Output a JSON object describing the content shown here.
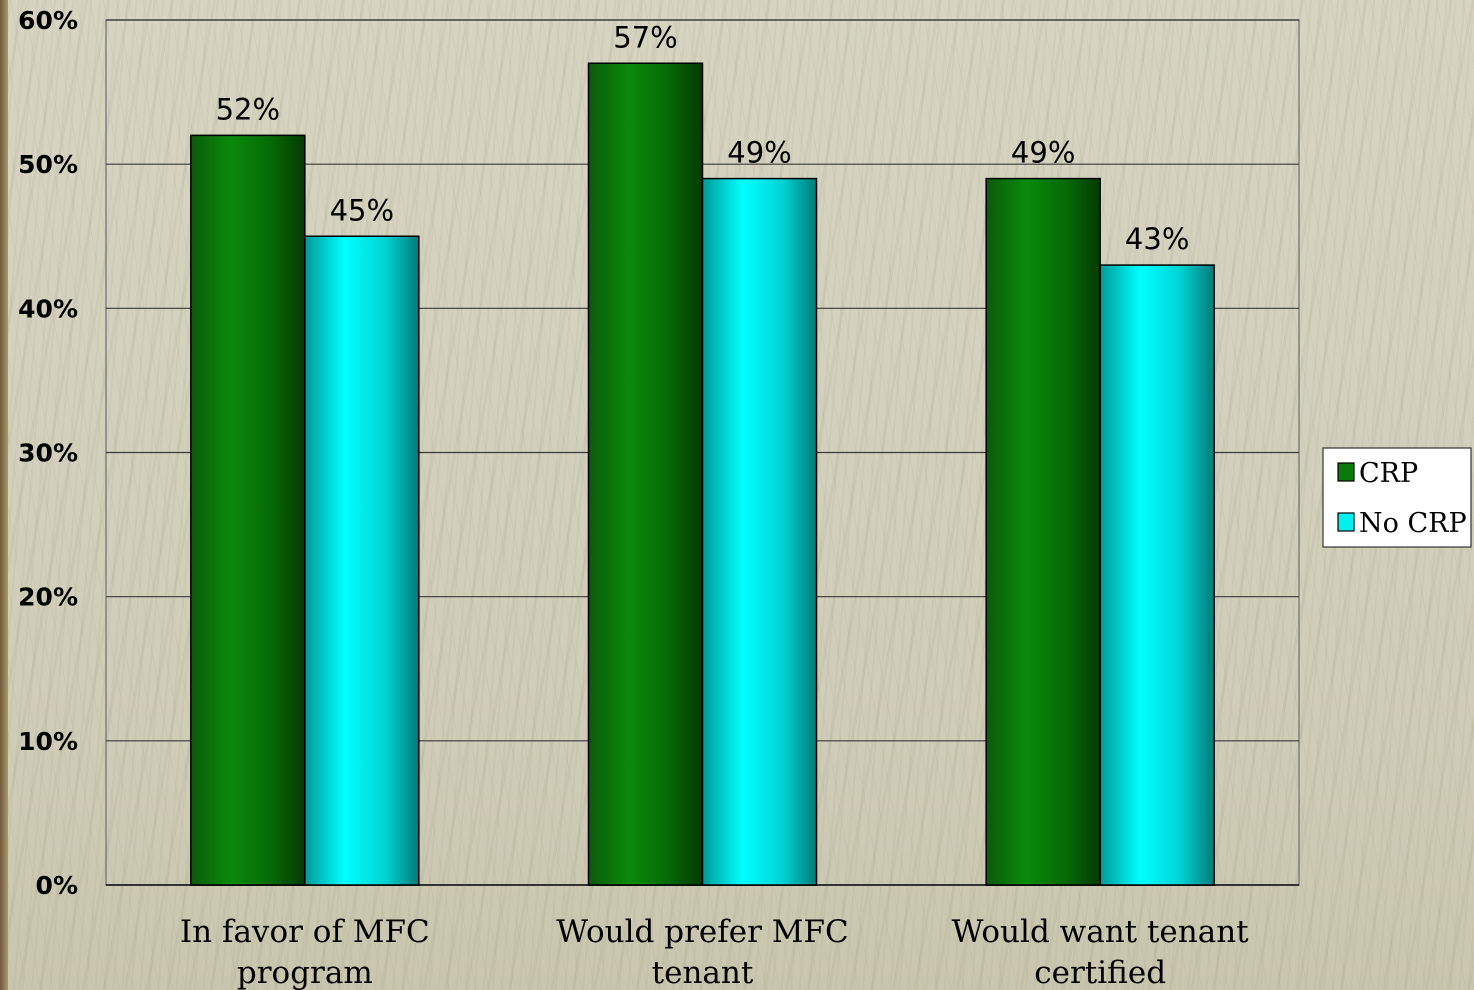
{
  "chart_data": {
    "type": "bar",
    "categories": [
      [
        "In favor of MFC",
        "program"
      ],
      [
        "Would prefer MFC",
        "tenant"
      ],
      [
        "Would want tenant",
        "certified"
      ]
    ],
    "series": [
      {
        "name": "CRP",
        "values": [
          52,
          57,
          49
        ],
        "labels": [
          "52%",
          "57%",
          "49%"
        ],
        "color": "#0a7a0a"
      },
      {
        "name": "No CRP",
        "values": [
          45,
          49,
          43
        ],
        "labels": [
          "45%",
          "49%",
          "43%"
        ],
        "color": "#00e5e5"
      }
    ],
    "ylim": [
      0,
      60
    ],
    "yticks": [
      0,
      10,
      20,
      30,
      40,
      50,
      60
    ],
    "ytick_labels": [
      "0%",
      "10%",
      "20%",
      "30%",
      "40%",
      "50%",
      "60%"
    ],
    "grid": true,
    "legend_position": "right"
  }
}
